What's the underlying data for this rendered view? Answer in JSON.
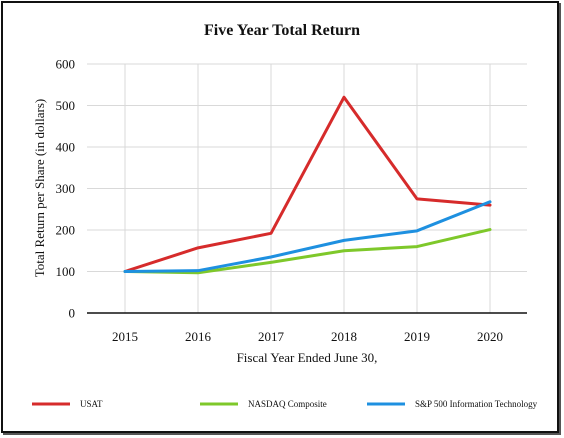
{
  "chart_data": {
    "type": "line",
    "title": "Five Year Total Return",
    "xlabel": "Fiscal Year Ended June 30,",
    "ylabel": "Total Return per Share (in dollars)",
    "categories": [
      "2015",
      "2016",
      "2017",
      "2018",
      "2019",
      "2020"
    ],
    "ylim": [
      0,
      600
    ],
    "yticks": [
      0,
      100,
      200,
      300,
      400,
      500,
      600
    ],
    "grid": true,
    "legend_position": "bottom",
    "series": [
      {
        "name": "USAT",
        "color": "#d62b2b",
        "values": [
          100,
          157,
          192,
          520,
          275,
          260
        ]
      },
      {
        "name": "NASDAQ Composite",
        "color": "#7ec82a",
        "values": [
          100,
          97,
          122,
          150,
          160,
          201
        ]
      },
      {
        "name": "S&P 500 Information Technology",
        "color": "#1e90e0",
        "values": [
          100,
          102,
          135,
          175,
          198,
          268
        ]
      }
    ]
  }
}
